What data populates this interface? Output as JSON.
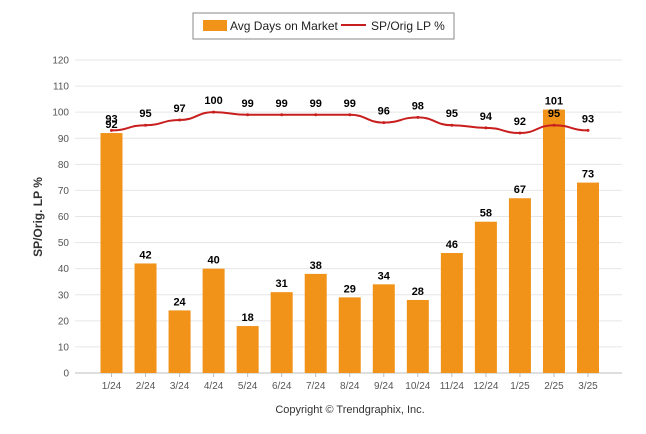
{
  "chart_data": {
    "type": "bar",
    "categories": [
      "1/24",
      "2/24",
      "3/24",
      "4/24",
      "5/24",
      "6/24",
      "7/24",
      "8/24",
      "9/24",
      "10/24",
      "11/24",
      "12/24",
      "1/25",
      "2/25",
      "3/25"
    ],
    "series": [
      {
        "name": "Avg Days on Market",
        "type": "bar",
        "color": "#F29319",
        "values": [
          92,
          42,
          24,
          40,
          18,
          31,
          38,
          29,
          34,
          28,
          46,
          58,
          67,
          101,
          73
        ]
      },
      {
        "name": "SP/Orig LP %",
        "type": "line",
        "color": "#C81E1E",
        "values": [
          93,
          95,
          97,
          100,
          99,
          99,
          99,
          99,
          96,
          98,
          95,
          94,
          92,
          95,
          93
        ]
      }
    ],
    "title": "",
    "xlabel": "",
    "ylabel": "SP/Orig. LP %",
    "ylim": [
      0,
      120
    ],
    "yticks": [
      0,
      10,
      20,
      30,
      40,
      50,
      60,
      70,
      80,
      90,
      100,
      110,
      120
    ],
    "grid": true,
    "legend_position": "top-center",
    "copyright": "Copyright © Trendgraphix, Inc."
  },
  "colors": {
    "bar": "#F29319",
    "line": "#C81E1E",
    "grid": "#E6E6E6",
    "axis": "#BDBDBD"
  }
}
